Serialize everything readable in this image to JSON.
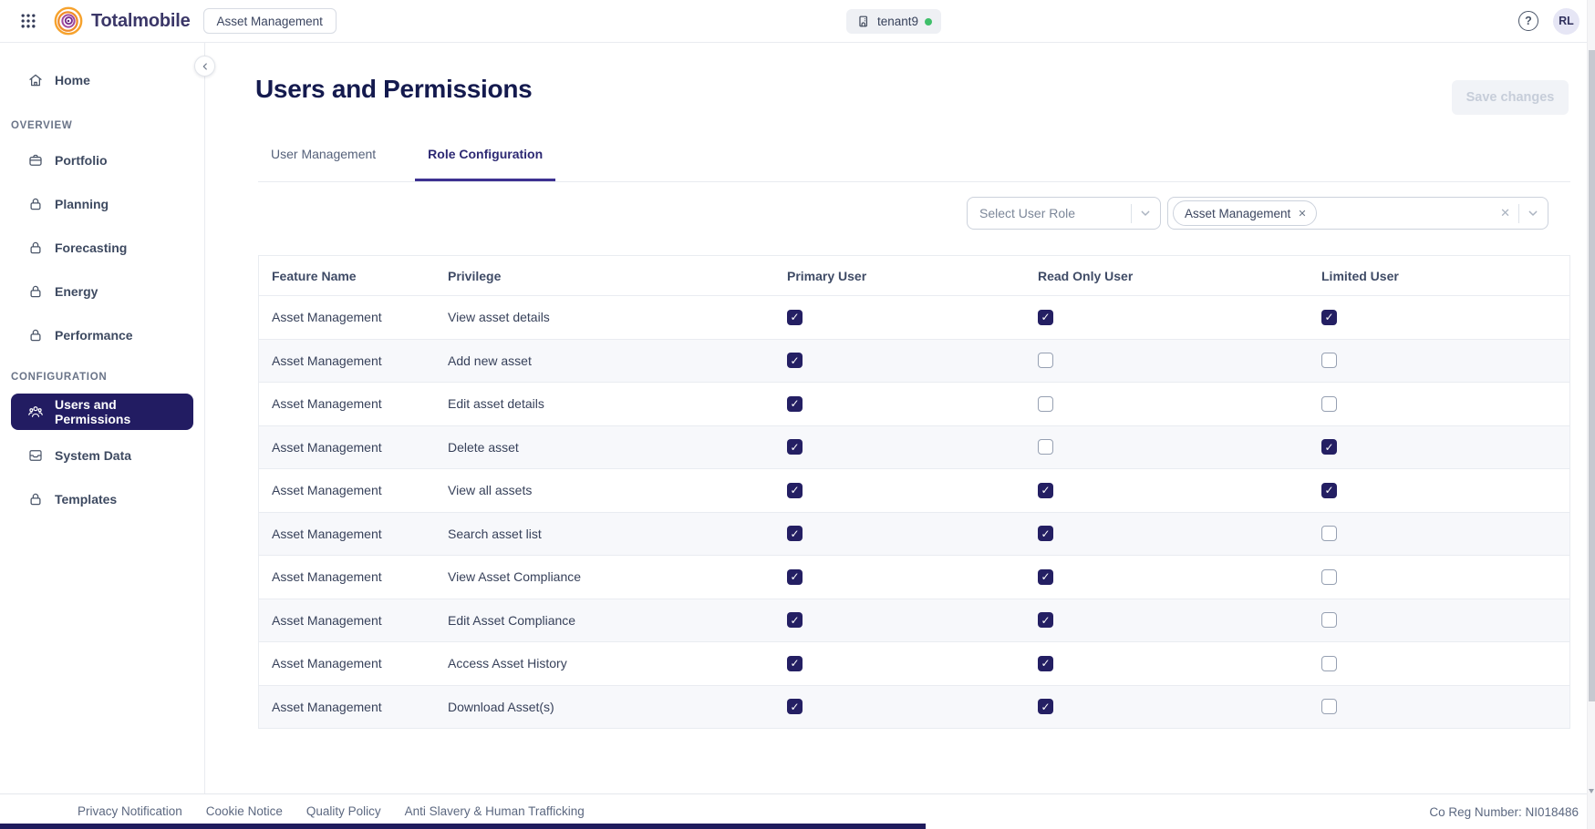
{
  "colors": {
    "accent_navy": "#241f63",
    "selected_nav_bg": "#221c62",
    "active_tab_underline": "#3d3191",
    "tenant_status_green": "#3fbf6a",
    "logo_orange": "#f6a22d",
    "logo_purple": "#8f3f97"
  },
  "topbar": {
    "apps_menu_icon": "grid-icon",
    "brand": "Totalmobile",
    "app_switcher_label": "Asset Management",
    "tenant": {
      "icon": "building-icon",
      "name": "tenant9",
      "status": "online"
    },
    "help_icon": "question-mark-icon",
    "avatar_initials": "RL"
  },
  "sidebar": {
    "collapse_icon": "chevron-left-icon",
    "home": {
      "label": "Home",
      "icon": "home"
    },
    "sections": [
      {
        "title": "OVERVIEW",
        "items": [
          {
            "label": "Portfolio",
            "icon": "briefcase",
            "active": false
          },
          {
            "label": "Planning",
            "icon": "lock",
            "active": false
          },
          {
            "label": "Forecasting",
            "icon": "lock",
            "active": false
          },
          {
            "label": "Energy",
            "icon": "lock",
            "active": false
          },
          {
            "label": "Performance",
            "icon": "lock",
            "active": false
          }
        ]
      },
      {
        "title": "CONFIGURATION",
        "items": [
          {
            "label": "Users and Permissions",
            "icon": "users",
            "active": true
          },
          {
            "label": "System Data",
            "icon": "system-data",
            "active": false
          },
          {
            "label": "Templates",
            "icon": "lock",
            "active": false
          }
        ]
      }
    ]
  },
  "main": {
    "title": "Users and Permissions",
    "save_button_label": "Save changes",
    "save_button_disabled": true,
    "tabs": [
      {
        "label": "User Management",
        "active": false
      },
      {
        "label": "Role Configuration",
        "active": true
      }
    ],
    "filters": {
      "role_select": {
        "placeholder": "Select User Role",
        "icon": "chevron-down-icon"
      },
      "feature_multiselect": {
        "selected_chips": [
          "Asset Management"
        ],
        "icons": [
          "remove-chip-icon",
          "clear-selection-icon",
          "chevron-down-icon"
        ]
      }
    },
    "table": {
      "columns": [
        "Feature Name",
        "Privilege",
        "Primary User",
        "Read Only User",
        "Limited User"
      ],
      "rows": [
        {
          "feature": "Asset Management",
          "privilege": "View asset details",
          "primary_user": true,
          "read_only_user": true,
          "limited_user": true
        },
        {
          "feature": "Asset Management",
          "privilege": "Add new asset",
          "primary_user": true,
          "read_only_user": false,
          "limited_user": false
        },
        {
          "feature": "Asset Management",
          "privilege": "Edit asset details",
          "primary_user": true,
          "read_only_user": false,
          "limited_user": false
        },
        {
          "feature": "Asset Management",
          "privilege": "Delete asset",
          "primary_user": true,
          "read_only_user": false,
          "limited_user": true
        },
        {
          "feature": "Asset Management",
          "privilege": "View all assets",
          "primary_user": true,
          "read_only_user": true,
          "limited_user": true
        },
        {
          "feature": "Asset Management",
          "privilege": "Search asset list",
          "primary_user": true,
          "read_only_user": true,
          "limited_user": false
        },
        {
          "feature": "Asset Management",
          "privilege": "View Asset Compliance",
          "primary_user": true,
          "read_only_user": true,
          "limited_user": false
        },
        {
          "feature": "Asset Management",
          "privilege": "Edit Asset Compliance",
          "primary_user": true,
          "read_only_user": true,
          "limited_user": false
        },
        {
          "feature": "Asset Management",
          "privilege": "Access Asset History",
          "primary_user": true,
          "read_only_user": true,
          "limited_user": false
        },
        {
          "feature": "Asset Management",
          "privilege": "Download Asset(s)",
          "primary_user": true,
          "read_only_user": true,
          "limited_user": false
        }
      ]
    }
  },
  "footer": {
    "links": [
      "Privacy Notification",
      "Cookie Notice",
      "Quality Policy",
      "Anti Slavery & Human Trafficking"
    ],
    "co_reg": "Co Reg Number: NI018486"
  }
}
